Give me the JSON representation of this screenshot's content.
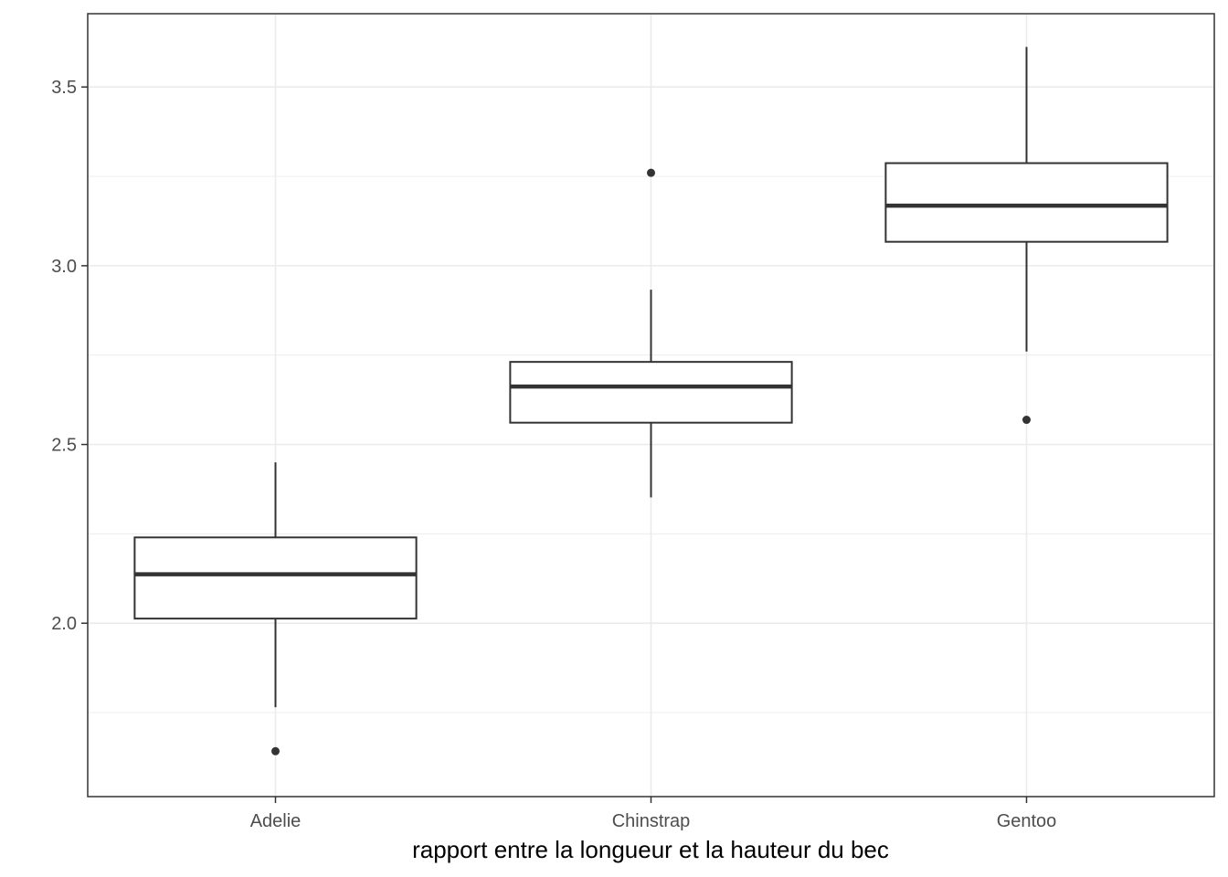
{
  "chart_data": {
    "type": "boxplot",
    "xlabel": "rapport entre la longueur et la hauteur du bec",
    "ylabel": "",
    "ylim": [
      1.515,
      3.705
    ],
    "yticks": [
      2.0,
      2.5,
      3.0,
      3.5
    ],
    "ytick_labels": [
      "2.0",
      "2.5",
      "3.0",
      "3.5"
    ],
    "grid": true,
    "categories": [
      "Adelie",
      "Chinstrap",
      "Gentoo"
    ],
    "boxes": [
      {
        "category": "Adelie",
        "whisker_low": 1.765,
        "q1": 2.013,
        "median": 2.137,
        "q3": 2.24,
        "whisker_high": 2.45,
        "outliers": [
          1.642
        ]
      },
      {
        "category": "Chinstrap",
        "whisker_low": 2.352,
        "q1": 2.561,
        "median": 2.662,
        "q3": 2.731,
        "whisker_high": 2.933,
        "outliers": [
          3.26
        ]
      },
      {
        "category": "Gentoo",
        "whisker_low": 2.76,
        "q1": 3.067,
        "median": 3.168,
        "q3": 3.287,
        "whisker_high": 3.612,
        "outliers": [
          2.569
        ]
      }
    ],
    "colors": {
      "box_line": "#333333",
      "grid": "#ebebeb",
      "panel_border": "#333333"
    }
  }
}
